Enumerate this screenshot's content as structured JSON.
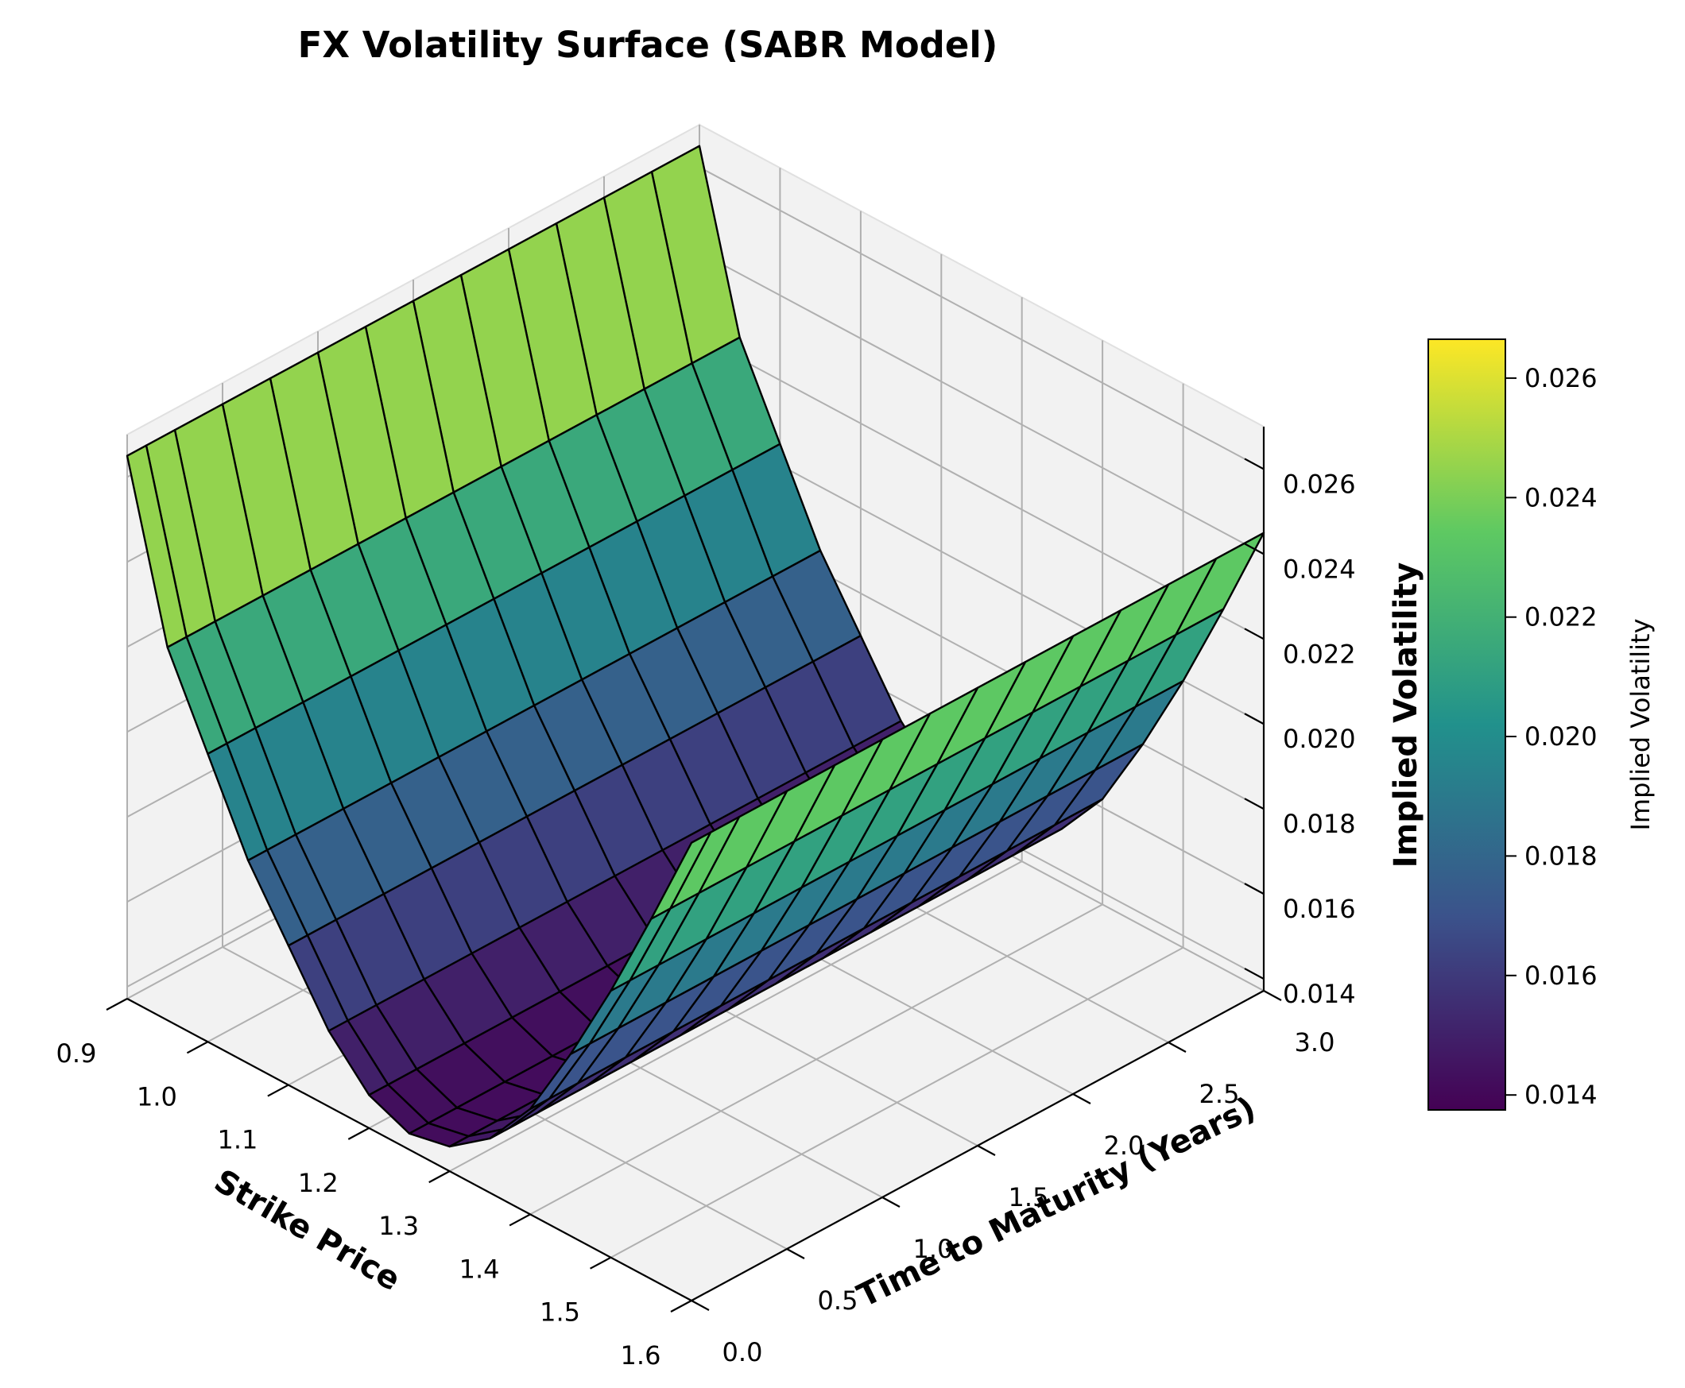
{
  "chart_data": {
    "type": "surface3d",
    "title": "FX Volatility Surface (SABR Model)",
    "xlabel": "Strike Price",
    "ylabel": "Time to Maturity (Years)",
    "zlabel": "Implied Volatility",
    "colorbar_label": "Implied Volatility",
    "colormap": "viridis",
    "colormap_stops": [
      "#440154",
      "#3b528b",
      "#21918c",
      "#5ec962",
      "#fde725"
    ],
    "edge_color": "#000000",
    "grid": true,
    "x_range": [
      0.9,
      1.6
    ],
    "y_range": [
      0.0,
      3.0
    ],
    "z_range": [
      0.014,
      0.0265
    ],
    "x_ticks": [
      "0.9",
      "1.0",
      "1.1",
      "1.2",
      "1.3",
      "1.4",
      "1.5",
      "1.6"
    ],
    "y_ticks": [
      "0.0",
      "0.5",
      "1.0",
      "1.5",
      "2.0",
      "2.5",
      "3.0"
    ],
    "z_ticks": [
      "0.014",
      "0.016",
      "0.018",
      "0.020",
      "0.022",
      "0.024",
      "0.026"
    ],
    "colorbar_ticks": [
      "0.014",
      "0.016",
      "0.018",
      "0.020",
      "0.022",
      "0.024",
      "0.026"
    ],
    "grid_strikes": [
      0.9,
      0.95,
      1.0,
      1.05,
      1.1,
      1.15,
      1.2,
      1.25,
      1.3,
      1.35,
      1.4,
      1.45,
      1.5,
      1.55,
      1.6
    ],
    "grid_maturities": [
      0.0,
      0.1,
      0.25,
      0.5,
      0.75,
      1.0,
      1.25,
      1.5,
      1.75,
      2.0,
      2.25,
      2.5,
      2.75,
      3.0
    ],
    "surface_rows": [
      {
        "strike": 0.9,
        "vols": [
          0.0265,
          0.0265,
          0.0265,
          0.0265,
          0.0265,
          0.0265,
          0.0265,
          0.0265,
          0.0265,
          0.0265,
          0.0265,
          0.0265,
          0.0265,
          0.0265
        ]
      },
      {
        "strike": 0.95,
        "vols": [
          0.0225,
          0.0225,
          0.0225,
          0.0225,
          0.0225,
          0.0225,
          0.0225,
          0.0225,
          0.0225,
          0.0225,
          0.0225,
          0.0225,
          0.0225,
          0.0225
        ]
      },
      {
        "strike": 1.0,
        "vols": [
          0.0205,
          0.0205,
          0.0205,
          0.0205,
          0.0205,
          0.0205,
          0.0205,
          0.0205,
          0.0205,
          0.0205,
          0.0205,
          0.0205,
          0.0205,
          0.0205
        ]
      },
      {
        "strike": 1.05,
        "vols": [
          0.0185,
          0.0185,
          0.0185,
          0.0185,
          0.0185,
          0.0185,
          0.0185,
          0.0185,
          0.0185,
          0.0185,
          0.0185,
          0.0185,
          0.0185,
          0.0185
        ]
      },
      {
        "strike": 1.1,
        "vols": [
          0.017,
          0.017,
          0.017,
          0.017,
          0.017,
          0.017,
          0.017,
          0.017,
          0.017,
          0.017,
          0.017,
          0.017,
          0.017,
          0.017
        ]
      },
      {
        "strike": 1.15,
        "vols": [
          0.0155,
          0.0155,
          0.0155,
          0.0155,
          0.0155,
          0.0155,
          0.0155,
          0.0155,
          0.0155,
          0.0155,
          0.0155,
          0.0155,
          0.0155,
          0.0155
        ]
      },
      {
        "strike": 1.2,
        "vols": [
          0.0145,
          0.0145,
          0.0145,
          0.0145,
          0.0145,
          0.0145,
          0.0145,
          0.0145,
          0.0145,
          0.0145,
          0.0145,
          0.0145,
          0.0145,
          0.0145
        ]
      },
      {
        "strike": 1.25,
        "vols": [
          0.0141,
          0.0141,
          0.0141,
          0.0141,
          0.0141,
          0.0141,
          0.0141,
          0.0141,
          0.0141,
          0.0141,
          0.0141,
          0.0141,
          0.0141,
          0.0141
        ]
      },
      {
        "strike": 1.3,
        "vols": [
          0.0143,
          0.0143,
          0.0143,
          0.0143,
          0.0143,
          0.0143,
          0.0143,
          0.0143,
          0.0143,
          0.0143,
          0.0143,
          0.0143,
          0.0143,
          0.0143
        ]
      },
      {
        "strike": 1.35,
        "vols": [
          0.015,
          0.015,
          0.015,
          0.015,
          0.015,
          0.015,
          0.015,
          0.015,
          0.015,
          0.015,
          0.015,
          0.015,
          0.015,
          0.015
        ]
      },
      {
        "strike": 1.4,
        "vols": [
          0.0162,
          0.0162,
          0.0162,
          0.0162,
          0.0162,
          0.0162,
          0.0162,
          0.0162,
          0.0162,
          0.0162,
          0.0162,
          0.0162,
          0.0162,
          0.0162
        ]
      },
      {
        "strike": 1.45,
        "vols": [
          0.018,
          0.018,
          0.018,
          0.018,
          0.018,
          0.018,
          0.018,
          0.018,
          0.018,
          0.018,
          0.018,
          0.018,
          0.018,
          0.018
        ]
      },
      {
        "strike": 1.5,
        "vols": [
          0.02,
          0.02,
          0.02,
          0.02,
          0.02,
          0.02,
          0.02,
          0.02,
          0.02,
          0.02,
          0.02,
          0.02,
          0.02,
          0.02
        ]
      },
      {
        "strike": 1.55,
        "vols": [
          0.0222,
          0.0222,
          0.0222,
          0.0222,
          0.0222,
          0.0222,
          0.0222,
          0.0222,
          0.0222,
          0.0222,
          0.0222,
          0.0222,
          0.0222,
          0.0222
        ]
      },
      {
        "strike": 1.6,
        "vols": [
          0.0245,
          0.0245,
          0.0245,
          0.0245,
          0.0245,
          0.0245,
          0.0245,
          0.0245,
          0.0245,
          0.0245,
          0.0245,
          0.0245,
          0.0245,
          0.0245
        ]
      }
    ]
  }
}
